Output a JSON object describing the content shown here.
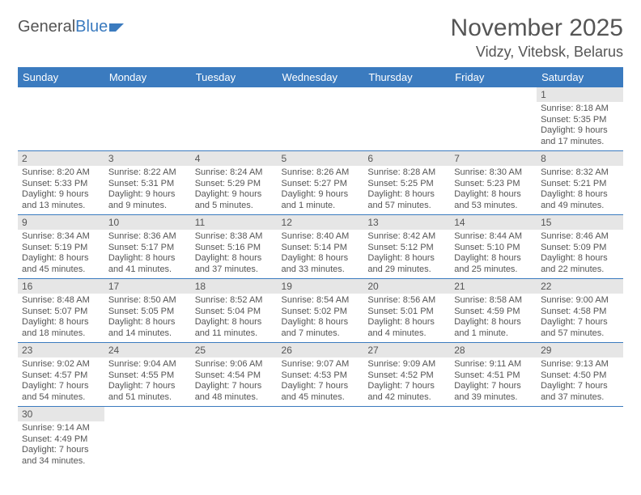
{
  "logo": {
    "part1": "General",
    "part2": "Blue"
  },
  "title": "November 2025",
  "location": "Vidzy, Vitebsk, Belarus",
  "colors": {
    "accent": "#3b7bbf",
    "header_bg": "#3b7bbf",
    "daynum_bg": "#e6e6e6",
    "text": "#555555"
  },
  "day_headers": [
    "Sunday",
    "Monday",
    "Tuesday",
    "Wednesday",
    "Thursday",
    "Friday",
    "Saturday"
  ],
  "weeks": [
    [
      null,
      null,
      null,
      null,
      null,
      null,
      {
        "n": "1",
        "sr": "Sunrise: 8:18 AM",
        "ss": "Sunset: 5:35 PM",
        "d1": "Daylight: 9 hours",
        "d2": "and 17 minutes."
      }
    ],
    [
      {
        "n": "2",
        "sr": "Sunrise: 8:20 AM",
        "ss": "Sunset: 5:33 PM",
        "d1": "Daylight: 9 hours",
        "d2": "and 13 minutes."
      },
      {
        "n": "3",
        "sr": "Sunrise: 8:22 AM",
        "ss": "Sunset: 5:31 PM",
        "d1": "Daylight: 9 hours",
        "d2": "and 9 minutes."
      },
      {
        "n": "4",
        "sr": "Sunrise: 8:24 AM",
        "ss": "Sunset: 5:29 PM",
        "d1": "Daylight: 9 hours",
        "d2": "and 5 minutes."
      },
      {
        "n": "5",
        "sr": "Sunrise: 8:26 AM",
        "ss": "Sunset: 5:27 PM",
        "d1": "Daylight: 9 hours",
        "d2": "and 1 minute."
      },
      {
        "n": "6",
        "sr": "Sunrise: 8:28 AM",
        "ss": "Sunset: 5:25 PM",
        "d1": "Daylight: 8 hours",
        "d2": "and 57 minutes."
      },
      {
        "n": "7",
        "sr": "Sunrise: 8:30 AM",
        "ss": "Sunset: 5:23 PM",
        "d1": "Daylight: 8 hours",
        "d2": "and 53 minutes."
      },
      {
        "n": "8",
        "sr": "Sunrise: 8:32 AM",
        "ss": "Sunset: 5:21 PM",
        "d1": "Daylight: 8 hours",
        "d2": "and 49 minutes."
      }
    ],
    [
      {
        "n": "9",
        "sr": "Sunrise: 8:34 AM",
        "ss": "Sunset: 5:19 PM",
        "d1": "Daylight: 8 hours",
        "d2": "and 45 minutes."
      },
      {
        "n": "10",
        "sr": "Sunrise: 8:36 AM",
        "ss": "Sunset: 5:17 PM",
        "d1": "Daylight: 8 hours",
        "d2": "and 41 minutes."
      },
      {
        "n": "11",
        "sr": "Sunrise: 8:38 AM",
        "ss": "Sunset: 5:16 PM",
        "d1": "Daylight: 8 hours",
        "d2": "and 37 minutes."
      },
      {
        "n": "12",
        "sr": "Sunrise: 8:40 AM",
        "ss": "Sunset: 5:14 PM",
        "d1": "Daylight: 8 hours",
        "d2": "and 33 minutes."
      },
      {
        "n": "13",
        "sr": "Sunrise: 8:42 AM",
        "ss": "Sunset: 5:12 PM",
        "d1": "Daylight: 8 hours",
        "d2": "and 29 minutes."
      },
      {
        "n": "14",
        "sr": "Sunrise: 8:44 AM",
        "ss": "Sunset: 5:10 PM",
        "d1": "Daylight: 8 hours",
        "d2": "and 25 minutes."
      },
      {
        "n": "15",
        "sr": "Sunrise: 8:46 AM",
        "ss": "Sunset: 5:09 PM",
        "d1": "Daylight: 8 hours",
        "d2": "and 22 minutes."
      }
    ],
    [
      {
        "n": "16",
        "sr": "Sunrise: 8:48 AM",
        "ss": "Sunset: 5:07 PM",
        "d1": "Daylight: 8 hours",
        "d2": "and 18 minutes."
      },
      {
        "n": "17",
        "sr": "Sunrise: 8:50 AM",
        "ss": "Sunset: 5:05 PM",
        "d1": "Daylight: 8 hours",
        "d2": "and 14 minutes."
      },
      {
        "n": "18",
        "sr": "Sunrise: 8:52 AM",
        "ss": "Sunset: 5:04 PM",
        "d1": "Daylight: 8 hours",
        "d2": "and 11 minutes."
      },
      {
        "n": "19",
        "sr": "Sunrise: 8:54 AM",
        "ss": "Sunset: 5:02 PM",
        "d1": "Daylight: 8 hours",
        "d2": "and 7 minutes."
      },
      {
        "n": "20",
        "sr": "Sunrise: 8:56 AM",
        "ss": "Sunset: 5:01 PM",
        "d1": "Daylight: 8 hours",
        "d2": "and 4 minutes."
      },
      {
        "n": "21",
        "sr": "Sunrise: 8:58 AM",
        "ss": "Sunset: 4:59 PM",
        "d1": "Daylight: 8 hours",
        "d2": "and 1 minute."
      },
      {
        "n": "22",
        "sr": "Sunrise: 9:00 AM",
        "ss": "Sunset: 4:58 PM",
        "d1": "Daylight: 7 hours",
        "d2": "and 57 minutes."
      }
    ],
    [
      {
        "n": "23",
        "sr": "Sunrise: 9:02 AM",
        "ss": "Sunset: 4:57 PM",
        "d1": "Daylight: 7 hours",
        "d2": "and 54 minutes."
      },
      {
        "n": "24",
        "sr": "Sunrise: 9:04 AM",
        "ss": "Sunset: 4:55 PM",
        "d1": "Daylight: 7 hours",
        "d2": "and 51 minutes."
      },
      {
        "n": "25",
        "sr": "Sunrise: 9:06 AM",
        "ss": "Sunset: 4:54 PM",
        "d1": "Daylight: 7 hours",
        "d2": "and 48 minutes."
      },
      {
        "n": "26",
        "sr": "Sunrise: 9:07 AM",
        "ss": "Sunset: 4:53 PM",
        "d1": "Daylight: 7 hours",
        "d2": "and 45 minutes."
      },
      {
        "n": "27",
        "sr": "Sunrise: 9:09 AM",
        "ss": "Sunset: 4:52 PM",
        "d1": "Daylight: 7 hours",
        "d2": "and 42 minutes."
      },
      {
        "n": "28",
        "sr": "Sunrise: 9:11 AM",
        "ss": "Sunset: 4:51 PM",
        "d1": "Daylight: 7 hours",
        "d2": "and 39 minutes."
      },
      {
        "n": "29",
        "sr": "Sunrise: 9:13 AM",
        "ss": "Sunset: 4:50 PM",
        "d1": "Daylight: 7 hours",
        "d2": "and 37 minutes."
      }
    ],
    [
      {
        "n": "30",
        "sr": "Sunrise: 9:14 AM",
        "ss": "Sunset: 4:49 PM",
        "d1": "Daylight: 7 hours",
        "d2": "and 34 minutes."
      },
      null,
      null,
      null,
      null,
      null,
      null
    ]
  ]
}
